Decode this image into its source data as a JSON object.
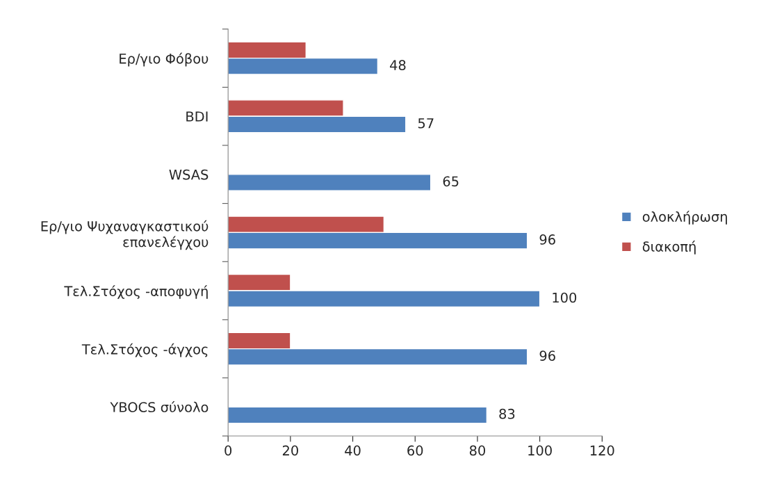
{
  "chart_data": {
    "type": "bar",
    "orientation": "horizontal",
    "categories": [
      "Ερ/γιο Φόβου",
      "BDI",
      "WSAS",
      "Ερ/γιο Ψυχαναγκαστικού\nεπανελέγχου",
      "Τελ.Στόχος -αποφυγή",
      "Τελ.Στόχος -άγχος",
      "YBOCS σύνολο"
    ],
    "series": [
      {
        "name": "διακοπή",
        "color": "#c0504d",
        "values": [
          25,
          37,
          null,
          50,
          20,
          20,
          null
        ]
      },
      {
        "name": "ολοκλήρωση",
        "color": "#4f81bd",
        "values": [
          48,
          57,
          65,
          96,
          100,
          96,
          83
        ],
        "value_labels": [
          "48",
          "57",
          "65",
          "96",
          "100",
          "96",
          "83"
        ]
      }
    ],
    "xlim": [
      0,
      120
    ],
    "xticks": [
      0,
      20,
      40,
      60,
      80,
      100,
      120
    ],
    "grid": false,
    "legend": "right"
  }
}
